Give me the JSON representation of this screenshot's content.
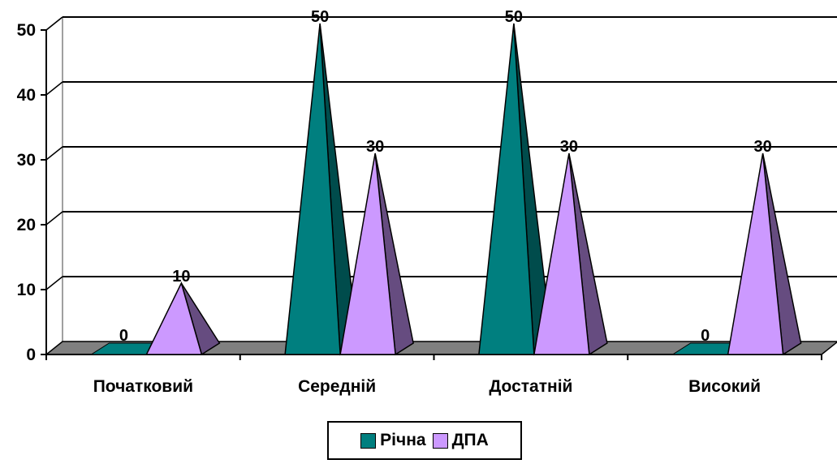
{
  "chart_data": {
    "type": "bar",
    "subtype": "3d-pyramid",
    "categories": [
      "Початковий",
      "Середній",
      "Достатній",
      "Високий"
    ],
    "series": [
      {
        "name": "Річна",
        "values": [
          0,
          50,
          50,
          0
        ],
        "color": "#007f7f",
        "shade": "#004c4c"
      },
      {
        "name": "ДПА",
        "values": [
          10,
          30,
          30,
          30
        ],
        "color": "#cc99ff",
        "shade": "#664c80"
      }
    ],
    "data_labels": true,
    "yticks": [
      "0",
      "10",
      "20",
      "30",
      "40",
      "50"
    ],
    "ylim": [
      0,
      50
    ],
    "grid": true,
    "floor_color": "#808080",
    "legend": {
      "position": "bottom"
    },
    "title": "",
    "xlabel": "",
    "ylabel": ""
  }
}
